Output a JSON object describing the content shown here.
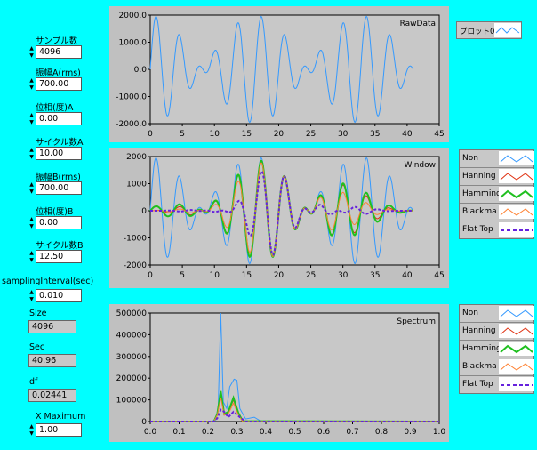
{
  "controls": [
    {
      "label": "サンプル数",
      "value": "4096",
      "top": 0
    },
    {
      "label": "振幅A(rms)",
      "value": "700.00"
    },
    {
      "label": "位相(度)A",
      "value": "0.00"
    },
    {
      "label": "サイクル数A",
      "value": "10.00"
    },
    {
      "label": "振幅B(rms)",
      "value": "700.00"
    },
    {
      "label": "位相(度)B",
      "value": "0.00"
    },
    {
      "label": "サイクル数B",
      "value": "12.50"
    },
    {
      "label": "samplingInterval(sec)",
      "value": "0.010"
    }
  ],
  "indicators": [
    {
      "label": "Size",
      "value": "4096"
    },
    {
      "label": "Sec",
      "value": "40.96"
    },
    {
      "label": "df",
      "value": "0.02441"
    }
  ],
  "xmax": {
    "label": "X Maximum",
    "value": "1.00"
  },
  "legend_top": {
    "name": "プロット0",
    "color": "#3399ff"
  },
  "legend_series": [
    {
      "name": "Non",
      "color": "#3399ff",
      "style": "thin"
    },
    {
      "name": "Hanning",
      "color": "#e03010",
      "style": "thin"
    },
    {
      "name": "Hamming",
      "color": "#20c020",
      "style": "thick"
    },
    {
      "name": "Blackma",
      "color": "#ff8030",
      "style": "thin"
    },
    {
      "name": "Flat Top",
      "color": "#6622dd",
      "style": "dash"
    }
  ],
  "chart_data": [
    {
      "type": "line",
      "title": "RawData",
      "xlim": [
        0,
        45
      ],
      "ylim": [
        -2000,
        2000
      ],
      "x_ticks": [
        "0",
        "5",
        "10",
        "15",
        "20",
        "25",
        "30",
        "35",
        "40",
        "45"
      ],
      "y_ticks": [
        "2000.0",
        "1000.0",
        "0.0",
        "-1000.0",
        "-2000.0"
      ],
      "series": [
        {
          "formula": "A*sin(2*pi*10*t/40.96) + B*sin(2*pi*12.5*t/40.96)",
          "amplitude_each": 990,
          "x_range": [
            0,
            40.96
          ],
          "color": "#3399ff"
        }
      ]
    },
    {
      "type": "line",
      "title": "Window",
      "xlim": [
        0,
        45
      ],
      "ylim": [
        -2000,
        2000
      ],
      "x_ticks": [
        "0",
        "5",
        "10",
        "15",
        "20",
        "25",
        "30",
        "35",
        "40",
        "45"
      ],
      "y_ticks": [
        "2000",
        "1000",
        "0",
        "-1000",
        "-2000"
      ],
      "series": [
        {
          "name": "Non",
          "window": "none",
          "color": "#3399ff"
        },
        {
          "name": "Hanning",
          "window": "hanning",
          "color": "#e03010"
        },
        {
          "name": "Hamming",
          "window": "hamming",
          "color": "#20c020"
        },
        {
          "name": "Blackma",
          "window": "blackman",
          "color": "#ff8030"
        },
        {
          "name": "Flat Top",
          "window": "flattop",
          "color": "#6622dd"
        }
      ]
    },
    {
      "type": "line",
      "title": "Spectrum",
      "xlim": [
        0,
        1
      ],
      "ylim": [
        0,
        500000
      ],
      "x_ticks": [
        "0.0",
        "0.1",
        "0.2",
        "0.3",
        "0.4",
        "0.5",
        "0.6",
        "0.7",
        "0.8",
        "0.9",
        "1.0"
      ],
      "y_ticks": [
        "500000",
        "400000",
        "300000",
        "200000",
        "100000",
        "0"
      ],
      "series": [
        {
          "name": "Non",
          "color": "#3399ff",
          "points": [
            [
              0,
              0
            ],
            [
              0.2,
              0
            ],
            [
              0.225,
              5000
            ],
            [
              0.235,
              60000
            ],
            [
              0.244,
              500000
            ],
            [
              0.253,
              90000
            ],
            [
              0.265,
              60000
            ],
            [
              0.275,
              160000
            ],
            [
              0.29,
              195000
            ],
            [
              0.3,
              190000
            ],
            [
              0.31,
              60000
            ],
            [
              0.33,
              12000
            ],
            [
              0.36,
              20000
            ],
            [
              0.38,
              4000
            ],
            [
              0.4,
              0
            ],
            [
              1.0,
              0
            ]
          ]
        },
        {
          "name": "Hanning",
          "color": "#e03010",
          "points": [
            [
              0,
              0
            ],
            [
              0.22,
              0
            ],
            [
              0.232,
              30000
            ],
            [
              0.244,
              125000
            ],
            [
              0.256,
              30000
            ],
            [
              0.27,
              40000
            ],
            [
              0.288,
              100000
            ],
            [
              0.305,
              35000
            ],
            [
              0.32,
              0
            ],
            [
              1.0,
              0
            ]
          ]
        },
        {
          "name": "Hamming",
          "color": "#20c020",
          "points": [
            [
              0,
              0
            ],
            [
              0.22,
              0
            ],
            [
              0.232,
              35000
            ],
            [
              0.244,
              140000
            ],
            [
              0.256,
              35000
            ],
            [
              0.27,
              45000
            ],
            [
              0.288,
              110000
            ],
            [
              0.305,
              40000
            ],
            [
              0.32,
              2000
            ],
            [
              1.0,
              0
            ]
          ]
        },
        {
          "name": "Blackma",
          "color": "#ff8030",
          "points": [
            [
              0,
              0
            ],
            [
              0.22,
              0
            ],
            [
              0.232,
              30000
            ],
            [
              0.244,
              110000
            ],
            [
              0.256,
              30000
            ],
            [
              0.27,
              35000
            ],
            [
              0.288,
              85000
            ],
            [
              0.305,
              30000
            ],
            [
              0.32,
              0
            ],
            [
              1.0,
              0
            ]
          ]
        },
        {
          "name": "Flat Top",
          "color": "#6622dd",
          "points": [
            [
              0,
              0
            ],
            [
              0.22,
              0
            ],
            [
              0.232,
              15000
            ],
            [
              0.244,
              55000
            ],
            [
              0.256,
              45000
            ],
            [
              0.27,
              20000
            ],
            [
              0.288,
              45000
            ],
            [
              0.31,
              20000
            ],
            [
              0.33,
              0
            ],
            [
              1.0,
              0
            ]
          ]
        }
      ]
    }
  ]
}
